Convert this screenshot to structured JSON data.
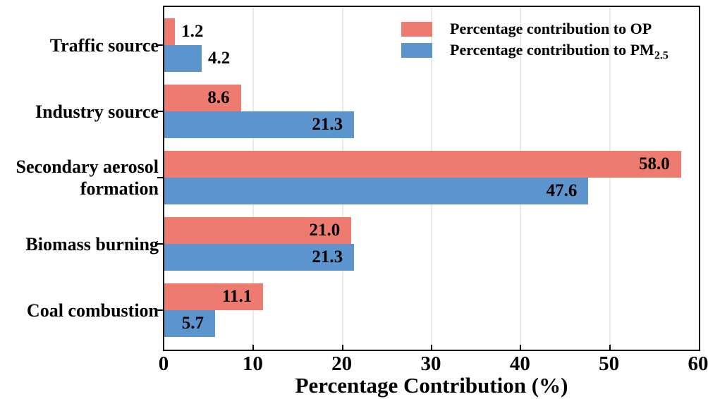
{
  "chart_data": {
    "type": "bar",
    "orientation": "horizontal",
    "title": "",
    "xlabel": "Percentage Contribution (%)",
    "ylabel": "",
    "categories": [
      "Traffic source",
      "Industry source",
      "Secondary aerosol formation",
      "Biomass burning",
      "Coal combustion"
    ],
    "series": [
      {
        "name": "Percentage contribution to OP",
        "legend_main": "Percentage contribution to OP",
        "legend_sub": "",
        "color": "#EE7B6F",
        "values": [
          1.2,
          8.6,
          58.0,
          21.0,
          11.1
        ]
      },
      {
        "name": "Percentage contribution to PM2.5",
        "legend_main": "Percentage contribution to PM",
        "legend_sub": "2.5",
        "color": "#5C95CE",
        "values": [
          4.2,
          21.3,
          47.6,
          21.3,
          5.7
        ]
      }
    ],
    "xlim": [
      0,
      60
    ],
    "xticks": [
      0,
      10,
      20,
      30,
      40,
      50,
      60
    ],
    "value_label_decimals": 1,
    "grid": "light vertical gridlines at x ticks",
    "legend_position": "top-right inside plot",
    "colors": {
      "axis": "#000000",
      "gridline": "#eaeaea",
      "background": "#ffffff",
      "text": "#000000"
    }
  }
}
